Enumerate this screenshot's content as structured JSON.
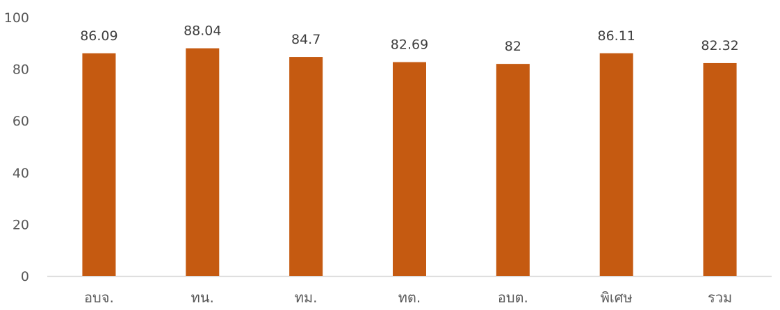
{
  "chart_data": {
    "type": "bar",
    "title": "",
    "xlabel": "",
    "ylabel": "",
    "categories": [
      "อบจ.",
      "ทน.",
      "ทม.",
      "ทต.",
      "อบต.",
      "พิเศษ",
      "รวม"
    ],
    "values": [
      86.09,
      88.04,
      84.7,
      82.69,
      82,
      86.11,
      82.32
    ],
    "value_labels": [
      "86.09",
      "88.04",
      "84.7",
      "82.69",
      "82",
      "86.11",
      "82.32"
    ],
    "ylim": [
      0,
      100
    ],
    "yticks": [
      0,
      20,
      40,
      60,
      80,
      100
    ],
    "ytick_labels": [
      "0",
      "20",
      "40",
      "60",
      "80",
      "100"
    ],
    "grid": false,
    "legend": "none",
    "colors": {
      "bar": "#C55A11",
      "text": "#404040",
      "tick": "#595959",
      "axis": "#D9D9D9"
    }
  }
}
